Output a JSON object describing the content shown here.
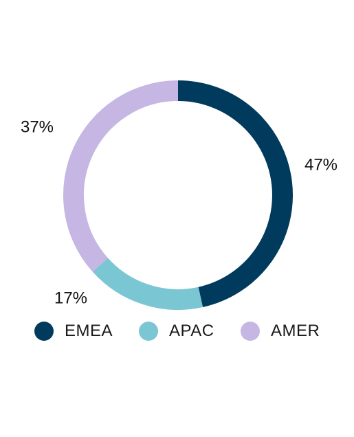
{
  "chart_data": {
    "type": "pie",
    "variant": "donut",
    "categories": [
      "EMEA",
      "APAC",
      "AMER"
    ],
    "values": [
      47,
      17,
      37
    ],
    "labels": [
      "47%",
      "17%",
      "37%"
    ],
    "colors": [
      "#003a5c",
      "#7ac6d3",
      "#c5b6e3"
    ],
    "start": "12 o'clock, clockwise",
    "legend_position": "bottom"
  },
  "legend": {
    "items": [
      {
        "label": "EMEA",
        "color": "#003a5c"
      },
      {
        "label": "APAC",
        "color": "#7ac6d3"
      },
      {
        "label": "AMER",
        "color": "#c5b6e3"
      }
    ]
  }
}
